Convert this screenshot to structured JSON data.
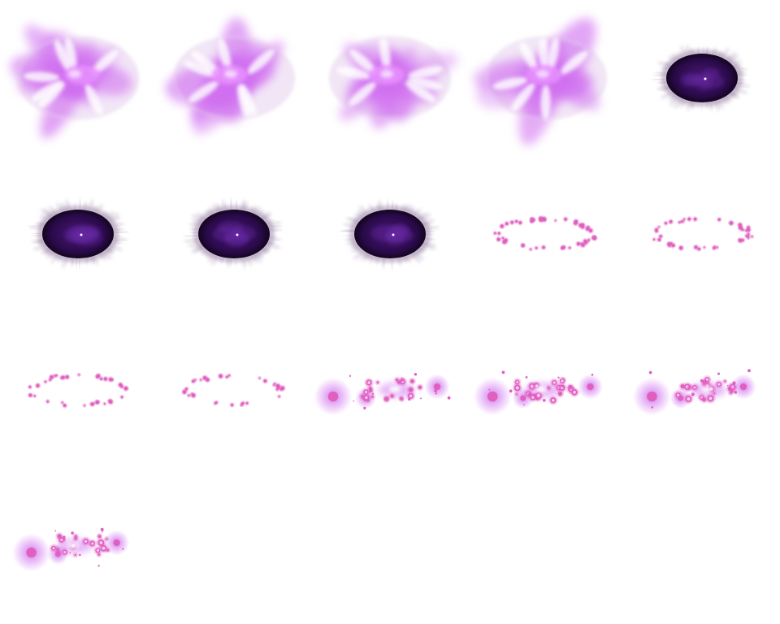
{
  "sprite_sheet": {
    "columns": 5,
    "frame_count": 16,
    "colors": {
      "background": "#ffffff",
      "pink_glow": "#d070f0",
      "pink_bright": "#e890ff",
      "dark_core": "#2a0a4a",
      "dark_mid": "#4a1a78",
      "spark": "#e060c0",
      "spark_light": "#f8c8f8"
    },
    "frames": [
      {
        "phase": "pink-ring",
        "variant": 0
      },
      {
        "phase": "pink-ring",
        "variant": 1
      },
      {
        "phase": "pink-ring",
        "variant": 2
      },
      {
        "phase": "pink-ring",
        "variant": 3
      },
      {
        "phase": "dark-orb",
        "variant": 0
      },
      {
        "phase": "dark-orb",
        "variant": 1
      },
      {
        "phase": "dark-orb",
        "variant": 2
      },
      {
        "phase": "dark-orb",
        "variant": 3
      },
      {
        "phase": "spark-ring",
        "variant": 0
      },
      {
        "phase": "spark-ring",
        "variant": 1
      },
      {
        "phase": "spark-ring",
        "variant": 2
      },
      {
        "phase": "spark-ring",
        "variant": 3
      },
      {
        "phase": "spark-burst",
        "variant": 0
      },
      {
        "phase": "spark-burst",
        "variant": 1
      },
      {
        "phase": "spark-burst",
        "variant": 2
      },
      {
        "phase": "spark-burst",
        "variant": 3
      }
    ]
  }
}
